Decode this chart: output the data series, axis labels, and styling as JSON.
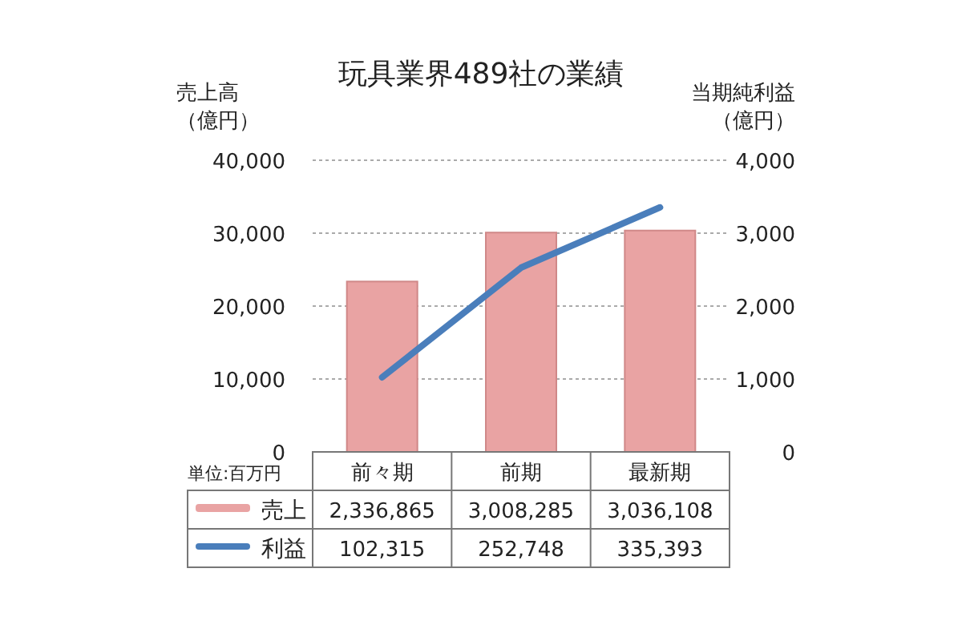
{
  "chart_data": {
    "type": "bar",
    "title": "玩具業界489社の業績",
    "ylabel": "売上高（億円）",
    "y2label": "当期純利益（億円）",
    "annotations": [
      "単位:百万円",
      "2,336,865",
      "3,008,285",
      "3,036,108",
      "102,315",
      "252,748",
      "335,393"
    ],
    "categories": [
      "前々期",
      "前期",
      "最新期"
    ],
    "series": [
      {
        "name": "売上",
        "color": "#e9a3a3",
        "values": [
          23369,
          30083,
          30361
        ]
      },
      {
        "name": "利益",
        "type": "line",
        "axis": "y2",
        "color": "#4a7ebb",
        "values": [
          1023,
          2527,
          3354
        ]
      }
    ],
    "ylim": [
      0,
      40000
    ],
    "yticks": [
      {
        "value": 0,
        "label": "0"
      },
      {
        "value": 10000,
        "label": "10,000"
      },
      {
        "value": 20000,
        "label": "20,000"
      },
      {
        "value": 30000,
        "label": "30,000"
      },
      {
        "value": 40000,
        "label": "40,000"
      }
    ],
    "y2lim": [
      0,
      4000
    ],
    "y2ticks": [
      {
        "value": 0,
        "label": "0"
      },
      {
        "value": 1000,
        "label": "1,000"
      },
      {
        "value": 2000,
        "label": "2,000"
      },
      {
        "value": 3000,
        "label": "3,000"
      },
      {
        "value": 4000,
        "label": "4,000"
      }
    ],
    "grid": "y",
    "legend": "bottom",
    "marker": "none",
    "line_style": "solid"
  }
}
